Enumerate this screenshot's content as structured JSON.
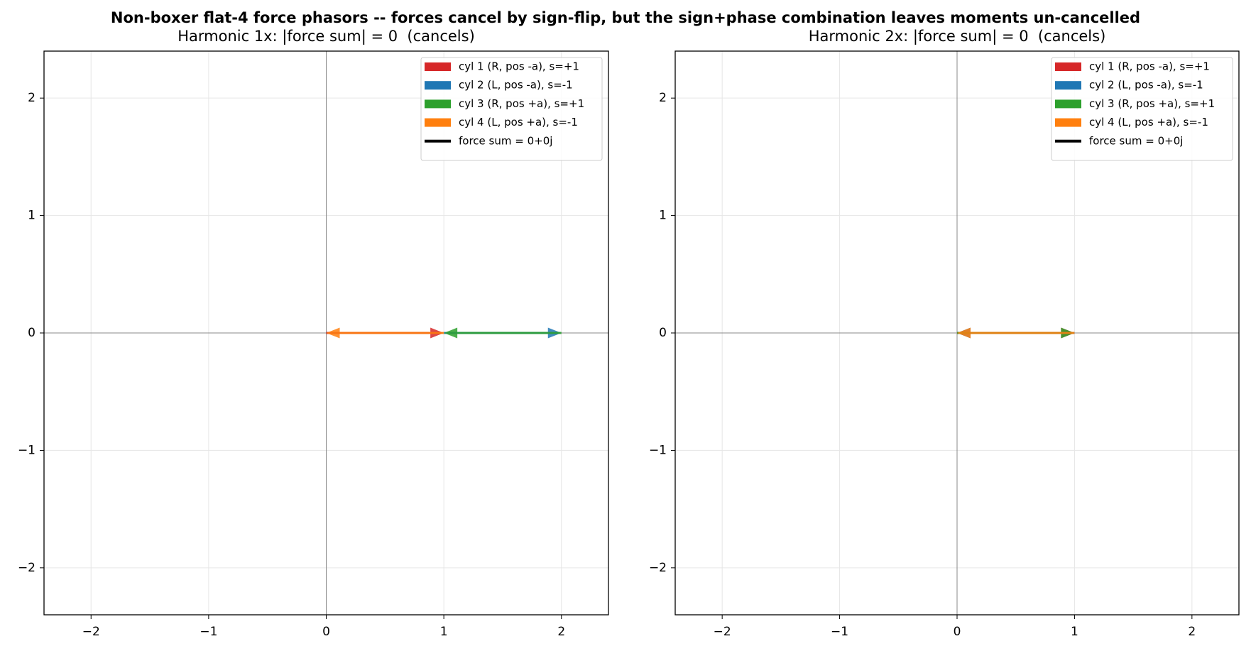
{
  "title": "Non-boxer flat-4 force phasors -- forces cancel by sign-flip, but the sign+phase combination leaves moments un-cancelled",
  "chart_data": [
    {
      "type": "phasor",
      "title": "Harmonic 1x: |force sum| = 0  (cancels)",
      "series": [
        {
          "name": "cyl 1 (R, pos -a), s=+1",
          "color": "#d62728",
          "real": [
            1
          ],
          "imag": [
            0
          ]
        },
        {
          "name": "cyl 2 (L, pos -a), s=-1",
          "color": "#1f77b4",
          "real": [
            1
          ],
          "imag": [
            0
          ]
        },
        {
          "name": "cyl 3 (R, pos +a), s=+1",
          "color": "#2ca02c",
          "real": [
            -1
          ],
          "imag": [
            0
          ]
        },
        {
          "name": "cyl 4 (L, pos +a), s=-1",
          "color": "#ff7f0e",
          "real": [
            -1
          ],
          "imag": [
            0
          ]
        }
      ],
      "sum": {
        "name": "force sum = 0+0j",
        "color": "#000000"
      },
      "xlim": [
        -2.4,
        2.4
      ],
      "ylim": [
        -2.4,
        2.4
      ],
      "xticks": [
        {
          "value": -2,
          "label": "−2"
        },
        {
          "value": -1,
          "label": "−1"
        },
        0,
        1,
        2
      ],
      "yticks": [
        {
          "value": -2,
          "label": "−2"
        },
        {
          "value": -1,
          "label": "−1"
        },
        0,
        1,
        2
      ],
      "grid": true,
      "legend": "upper right"
    },
    {
      "type": "phasor",
      "title": "Harmonic 2x: |force sum| = 0  (cancels)",
      "series": [
        {
          "name": "cyl 1 (R, pos -a), s=+1",
          "color": "#d62728",
          "real": [
            1
          ],
          "imag": [
            0
          ]
        },
        {
          "name": "cyl 2 (L, pos -a), s=-1",
          "color": "#1f77b4",
          "real": [
            -1
          ],
          "imag": [
            0
          ]
        },
        {
          "name": "cyl 3 (R, pos +a), s=+1",
          "color": "#2ca02c",
          "real": [
            1
          ],
          "imag": [
            0
          ]
        },
        {
          "name": "cyl 4 (L, pos +a), s=-1",
          "color": "#ff7f0e",
          "real": [
            -1
          ],
          "imag": [
            0
          ]
        }
      ],
      "sum": {
        "name": "force sum = 0+0j",
        "color": "#000000"
      },
      "xlim": [
        -2.4,
        2.4
      ],
      "ylim": [
        -2.4,
        2.4
      ],
      "xticks": [
        {
          "value": -2,
          "label": "−2"
        },
        {
          "value": -1,
          "label": "−1"
        },
        0,
        1,
        2
      ],
      "yticks": [
        {
          "value": -2,
          "label": "−2"
        },
        {
          "value": -1,
          "label": "−1"
        },
        0,
        1,
        2
      ],
      "grid": true,
      "legend": "upper right"
    }
  ]
}
